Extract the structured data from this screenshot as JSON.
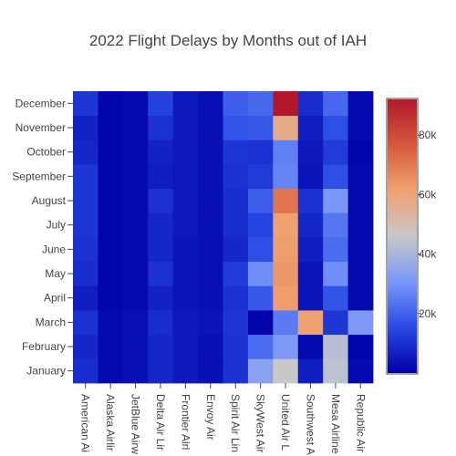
{
  "chart_data": {
    "type": "heatmap",
    "title": "2022 Flight Delays by Months out of IAH",
    "xlabel": "",
    "ylabel": "",
    "x": [
      "American Ai",
      "Alaska Airlir",
      "JetBlue Airw",
      "Delta Air Lir",
      "Frontier Airl",
      "Envoy Air",
      "Spirit Air Lin",
      "SkyWest Air",
      "United Air L",
      "Southwest A",
      "Mesa Airline",
      "Republic Air"
    ],
    "y": [
      "January",
      "February",
      "March",
      "April",
      "May",
      "June",
      "July",
      "August",
      "September",
      "October",
      "November",
      "December"
    ],
    "z": [
      [
        9000,
        2000,
        3000,
        8000,
        5000,
        3000,
        10000,
        34000,
        46000,
        6000,
        44000,
        2000
      ],
      [
        8000,
        2000,
        3000,
        8000,
        5000,
        3000,
        10000,
        22000,
        32000,
        2000,
        43000,
        1000
      ],
      [
        10000,
        2000,
        3000,
        9000,
        5000,
        4000,
        11000,
        1000,
        25000,
        61000,
        11000,
        32000
      ],
      [
        6000,
        1000,
        2000,
        7000,
        4000,
        3000,
        10000,
        18000,
        62000,
        4000,
        17000,
        2000
      ],
      [
        9000,
        1000,
        2000,
        10000,
        4000,
        3000,
        12000,
        29000,
        63000,
        4000,
        29000,
        2000
      ],
      [
        10000,
        1000,
        2000,
        8000,
        4000,
        3000,
        8000,
        16000,
        62000,
        6000,
        22000,
        2000
      ],
      [
        11000,
        1000,
        2000,
        8000,
        5000,
        3000,
        9000,
        14000,
        61000,
        8000,
        24000,
        2000
      ],
      [
        11000,
        1000,
        2000,
        10000,
        5000,
        3000,
        9000,
        19000,
        71000,
        10000,
        31000,
        2000
      ],
      [
        11000,
        1000,
        2000,
        6000,
        5000,
        3000,
        10000,
        12000,
        27000,
        4000,
        16000,
        2000
      ],
      [
        8000,
        1000,
        2000,
        7000,
        5000,
        3000,
        11000,
        10000,
        26000,
        5000,
        12000,
        1000
      ],
      [
        7000,
        1000,
        2000,
        10000,
        5000,
        3000,
        17000,
        18000,
        57000,
        6000,
        16000,
        2000
      ],
      [
        11000,
        1000,
        2000,
        13000,
        5000,
        3000,
        19000,
        21000,
        92000,
        9000,
        21000,
        2000
      ]
    ],
    "zmin": 0,
    "zmax": 92000,
    "colorscale": [
      "#0000a8",
      "#2a4be6",
      "#7896fa",
      "#c8c8c8",
      "#f0a070",
      "#d75a3c",
      "#b2182b"
    ],
    "colorbar": {
      "ticks": [
        20000,
        40000,
        60000,
        80000
      ],
      "ticklabels": [
        "20k",
        "40k",
        "60k",
        "80k"
      ]
    },
    "grid": false,
    "legend": "colorbar-right"
  }
}
